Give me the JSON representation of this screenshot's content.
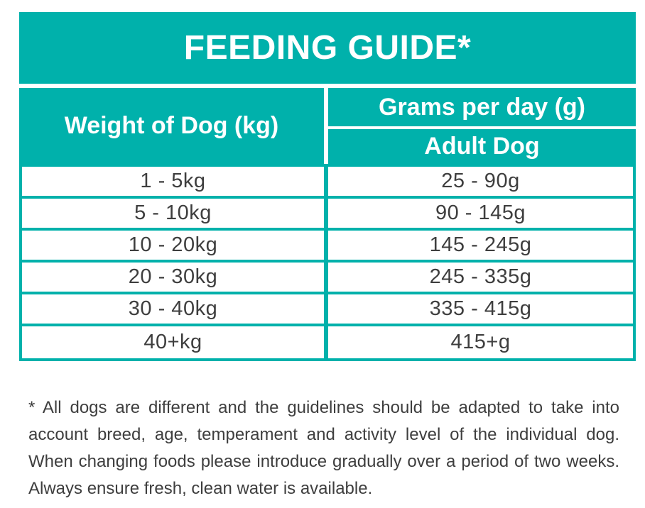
{
  "title": "FEEDING GUIDE*",
  "table": {
    "weight_header": "Weight of Dog (kg)",
    "grams_header": "Grams per day (g)",
    "adult_header": "Adult Dog",
    "rows": [
      {
        "weight": "1 - 5kg",
        "grams": "25 - 90g"
      },
      {
        "weight": "5 - 10kg",
        "grams": "90 - 145g"
      },
      {
        "weight": "10 - 20kg",
        "grams": "145 - 245g"
      },
      {
        "weight": "20 - 30kg",
        "grams": "245 - 335g"
      },
      {
        "weight": "30 - 40kg",
        "grams": "335 - 415g"
      },
      {
        "weight": "40+kg",
        "grams": "415+g"
      }
    ]
  },
  "footnote": {
    "lines": [
      "* All dogs are different and the guidelines should be adapted to take into",
      "account breed, age, temperament and activity level of the individual dog.",
      "When changing foods please introduce gradually over a period of two weeks.",
      "Always ensure fresh, clean water is available."
    ]
  },
  "colors": {
    "teal": "#00B1AB",
    "text": "#3E3E3E",
    "header_text": "#FFFFFF"
  }
}
